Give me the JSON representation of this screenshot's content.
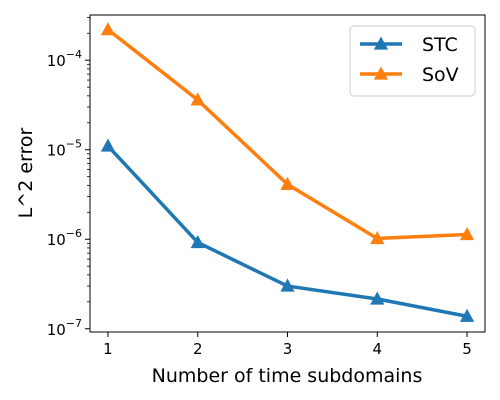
{
  "chart_data": {
    "type": "line",
    "xlabel": "Number of time subdomains",
    "ylabel": "L^2 error",
    "yscale": "log",
    "xlim": [
      0.8,
      5.2
    ],
    "ylim": [
      9.2e-08,
      0.00032
    ],
    "x_ticks": [
      1,
      2,
      3,
      4,
      5
    ],
    "x_tick_labels": [
      "1",
      "2",
      "3",
      "4",
      "5"
    ],
    "y_ticks": [
      {
        "value": 0.0001,
        "base": "10",
        "exp": "−4"
      },
      {
        "value": 1e-05,
        "base": "10",
        "exp": "−5"
      },
      {
        "value": 1e-06,
        "base": "10",
        "exp": "−6"
      },
      {
        "value": 1e-07,
        "base": "10",
        "exp": "−7"
      }
    ],
    "grid": false,
    "legend_position": "top-right",
    "x": [
      1,
      2,
      3,
      4,
      5
    ],
    "series": [
      {
        "name": "STC",
        "color": "#1f77b4",
        "marker": "triangle-up",
        "values": [
          1.1e-05,
          9.2e-07,
          3e-07,
          2.15e-07,
          1.38e-07
        ]
      },
      {
        "name": "SoV",
        "color": "#ff7f0e",
        "marker": "triangle-up",
        "values": [
          0.00022,
          3.6e-05,
          4.1e-06,
          1.02e-06,
          1.13e-06
        ]
      }
    ]
  }
}
